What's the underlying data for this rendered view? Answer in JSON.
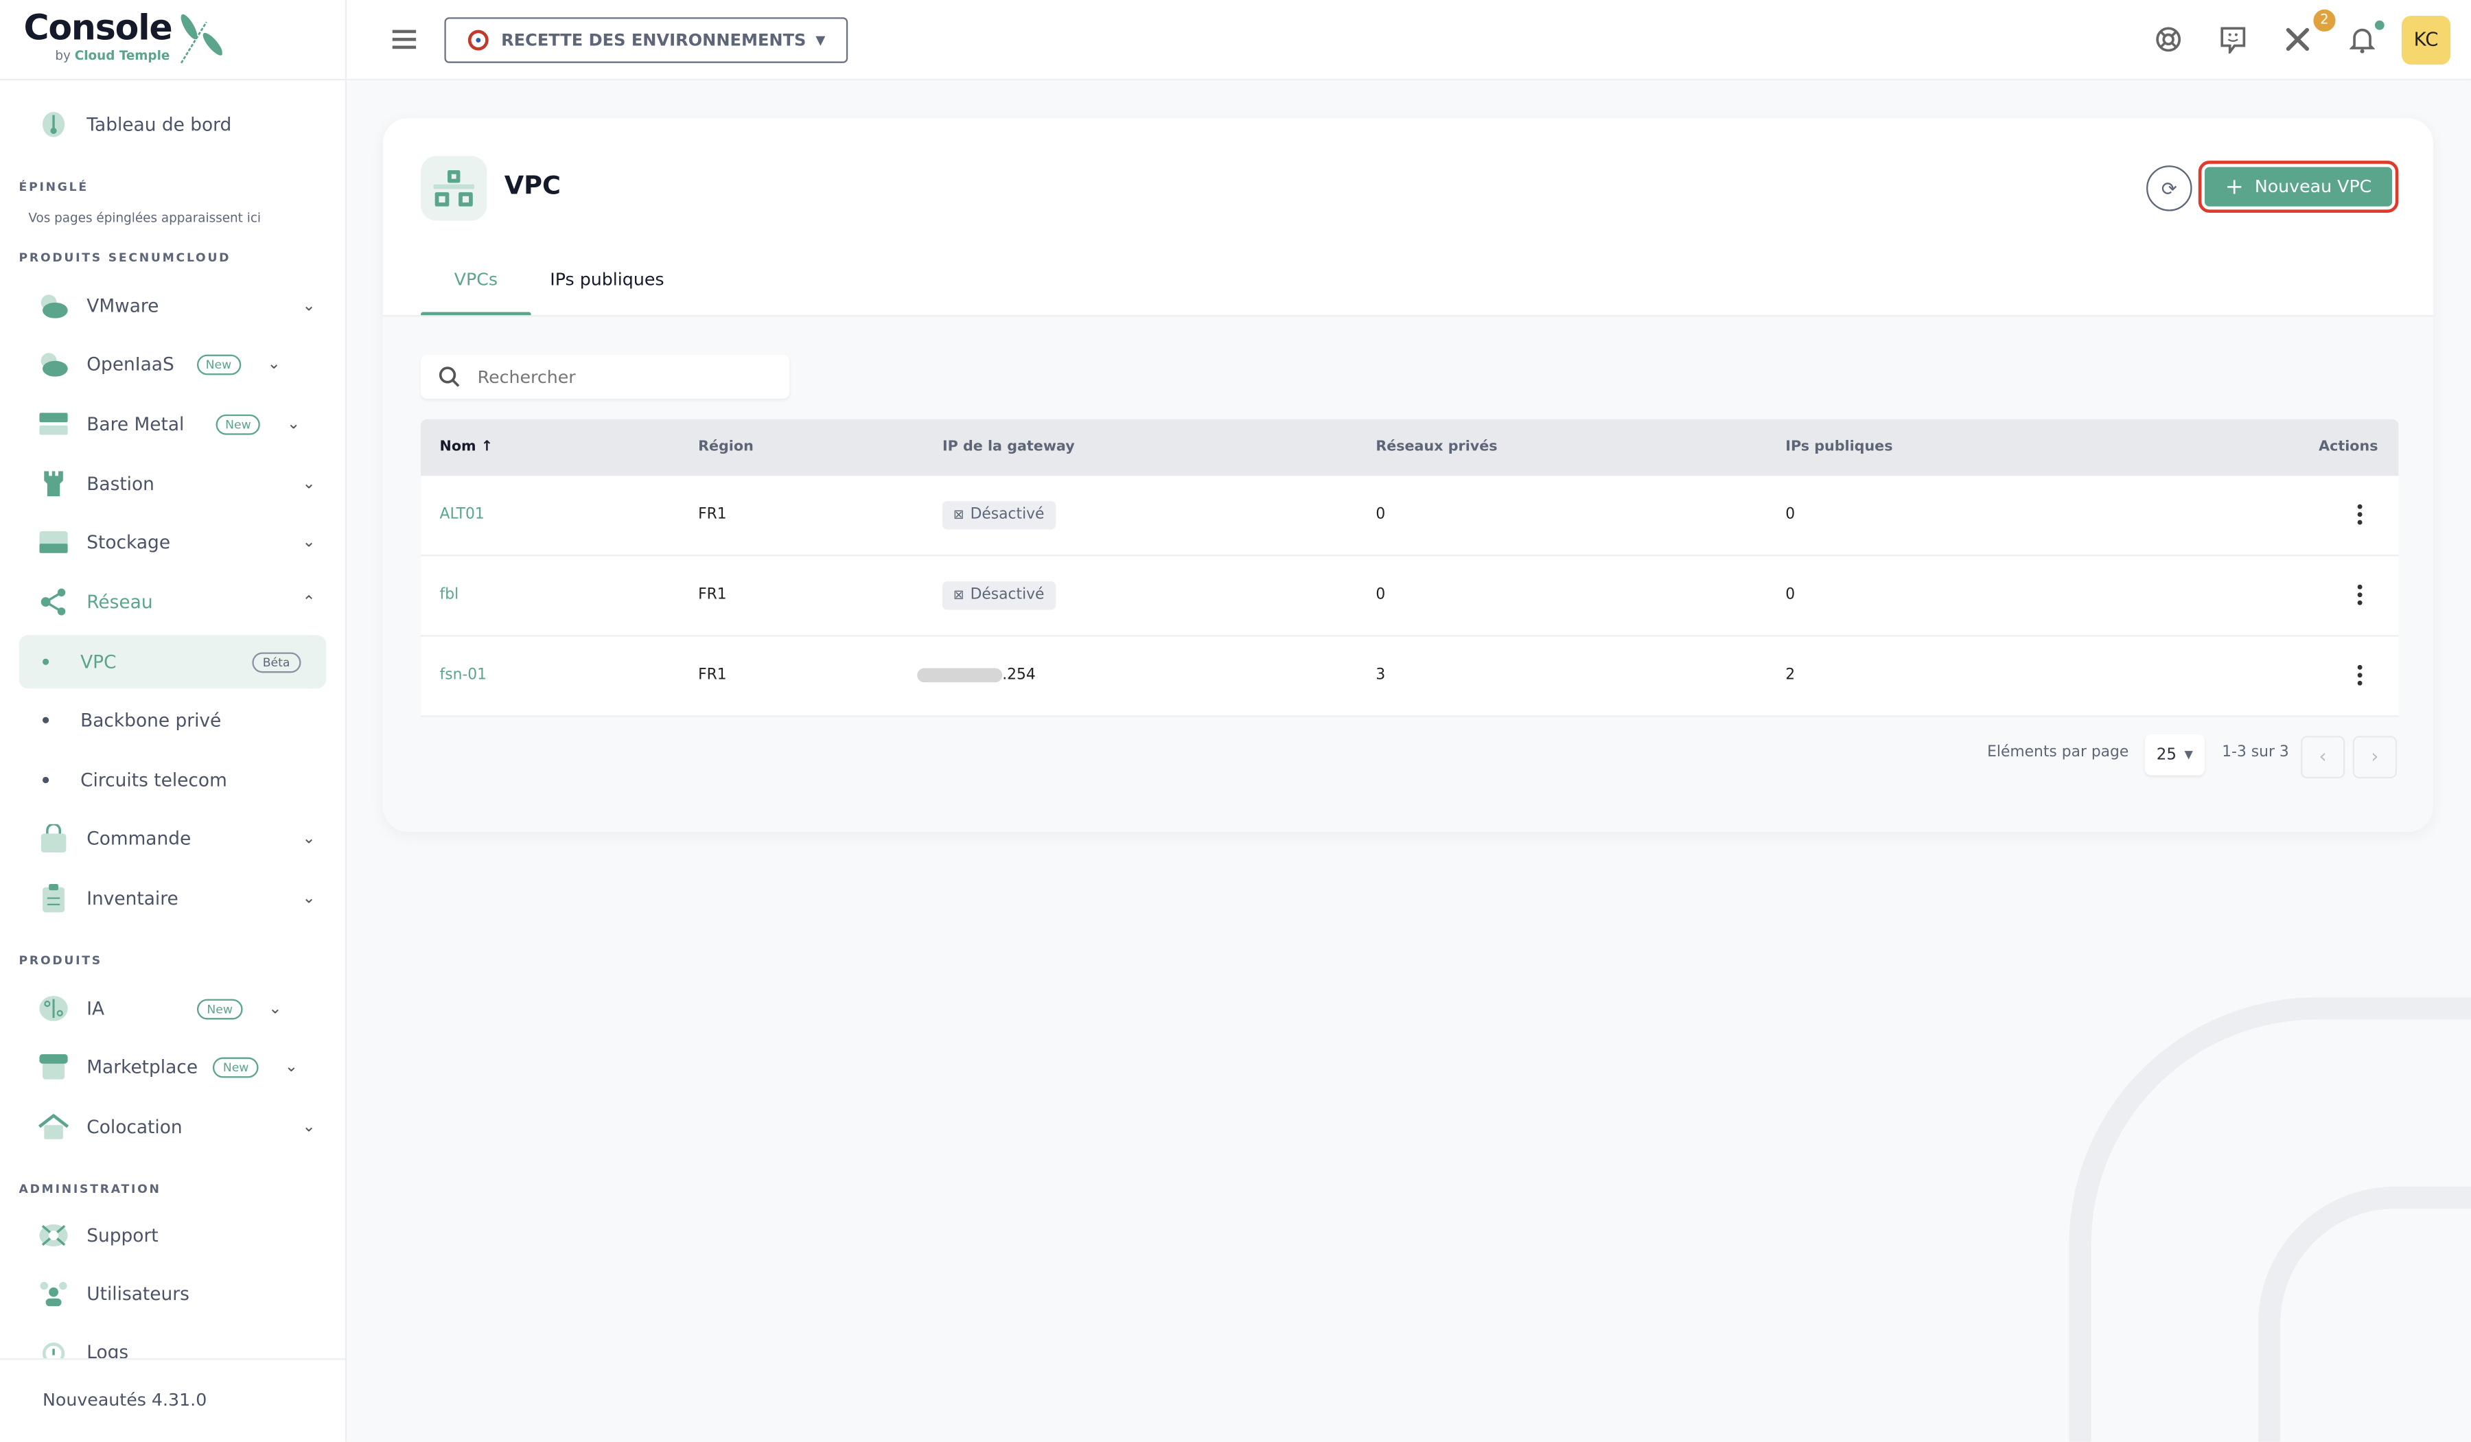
{
  "logo": {
    "title": "Console",
    "by": "by",
    "brand": "Cloud Temple"
  },
  "topbar": {
    "env_label": "RECETTE DES ENVIRONNEMENTS",
    "tools_badge": "2",
    "avatar": "KC",
    "accent": "#5aa58b",
    "avatar_color": "#f5d76e",
    "badge_color": "#e0a23c"
  },
  "sidebar": {
    "dashboard": "Tableau de bord",
    "pinned_title": "ÉPINGLÉ",
    "pinned_note": "Vos pages épinglées apparaissent ici",
    "sec1": "PRODUITS SECNUMCLOUD",
    "vmware": "VMware",
    "openiaas": "OpenIaaS",
    "baremetal": "Bare Metal",
    "bastion": "Bastion",
    "stockage": "Stockage",
    "reseau": "Réseau",
    "vpc": "VPC",
    "beta": "Béta",
    "backbone": "Backbone privé",
    "circuits": "Circuits telecom",
    "commande": "Commande",
    "inventaire": "Inventaire",
    "sec2": "PRODUITS",
    "ia": "IA",
    "marketplace": "Marketplace",
    "colocation": "Colocation",
    "sec3": "ADMINISTRATION",
    "support": "Support",
    "utilisateurs": "Utilisateurs",
    "logs": "Logs",
    "new": "New",
    "footer": "Nouveautés 4.31.0"
  },
  "page": {
    "title": "VPC",
    "new_button": "Nouveau VPC",
    "tabs": [
      {
        "label": "VPCs",
        "active": true
      },
      {
        "label": "IPs publiques",
        "active": false
      }
    ],
    "search_placeholder": "Rechercher",
    "table": {
      "columns": [
        "Nom",
        "Région",
        "IP de la gateway",
        "Réseaux privés",
        "IPs publiques",
        "Actions"
      ],
      "sort": "Nom ascending",
      "rows": [
        {
          "name": "ALT01",
          "region": "FR1",
          "gateway": "Désactivé",
          "gateway_disabled": true,
          "private": "0",
          "public": "0"
        },
        {
          "name": "fbl",
          "region": "FR1",
          "gateway": "Désactivé",
          "gateway_disabled": true,
          "private": "0",
          "public": "0"
        },
        {
          "name": "fsn-01",
          "region": "FR1",
          "gateway": ".254",
          "gateway_disabled": false,
          "private": "3",
          "public": "2"
        }
      ]
    },
    "pagination": {
      "per_page_label": "Eléments par page",
      "per_page": "25",
      "range": "1-3 sur 3"
    }
  }
}
